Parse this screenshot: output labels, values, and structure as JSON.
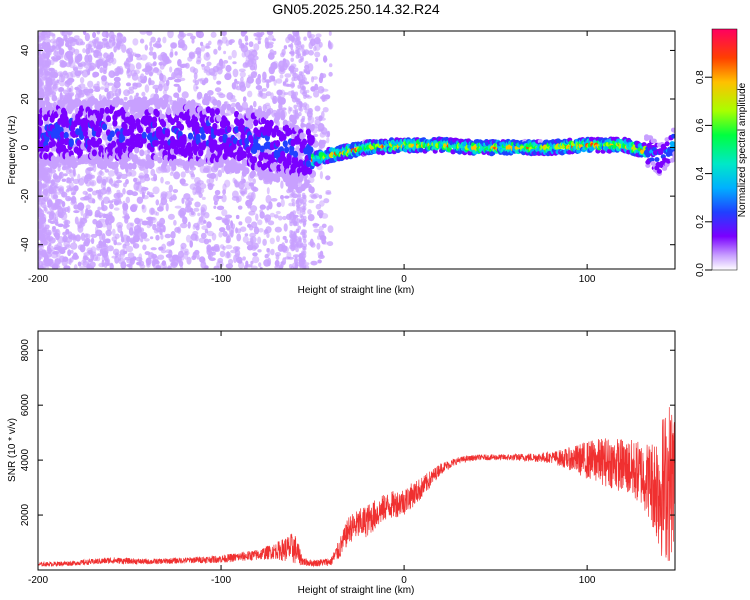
{
  "title": "GN05.2025.250.14.32.R24",
  "chart_data": [
    {
      "type": "heatmap",
      "title": "GN05.2025.250.14.32.R24",
      "xlabel": "Height of straight line (km)",
      "ylabel": "Frequency (Hz)",
      "xlim": [
        -200,
        148
      ],
      "ylim": [
        -50,
        48
      ],
      "xticks": [
        -200,
        -100,
        0,
        100
      ],
      "yticks": [
        -40,
        -20,
        0,
        20,
        40
      ],
      "colorbar": {
        "label": "Normalized spectral amplitude",
        "range": [
          0,
          1
        ],
        "ticks": [
          "0.0",
          "0.2",
          "0.4",
          "0.6",
          "0.8"
        ],
        "tick_values": [
          0,
          0.2,
          0.4,
          0.6,
          0.8
        ],
        "colors": [
          "#ffffff",
          "#c8a0ff",
          "#7a00ff",
          "#2040ff",
          "#00b0ff",
          "#00e8c8",
          "#00ff40",
          "#a8ff00",
          "#ffc000",
          "#ff4000",
          "#ff0060"
        ]
      },
      "ridge": {
        "description_points_x": [
          -200,
          -150,
          -100,
          -80,
          -60,
          -50,
          -40,
          -20,
          0,
          20,
          40,
          60,
          80,
          100,
          120,
          135,
          140,
          148
        ],
        "frequency_y": [
          6,
          6,
          5,
          2,
          -2,
          -5,
          -3,
          0,
          1,
          1,
          0,
          0,
          0,
          1,
          1,
          -2,
          -5,
          2
        ]
      }
    },
    {
      "type": "line",
      "xlabel": "Height of straight line (km)",
      "ylabel": "SNR (10 * v/v)",
      "xlim": [
        -200,
        148
      ],
      "ylim": [
        0,
        8700
      ],
      "xticks": [
        -200,
        -100,
        0,
        100
      ],
      "yticks": [
        2000,
        4000,
        6000,
        8000
      ],
      "series": [
        {
          "name": "SNR",
          "color": "#f03030",
          "x": [
            -200,
            -180,
            -160,
            -140,
            -120,
            -100,
            -80,
            -70,
            -60,
            -55,
            -50,
            -40,
            -35,
            -30,
            -20,
            -10,
            0,
            10,
            20,
            30,
            40,
            60,
            80,
            90,
            100,
            110,
            120,
            130,
            135,
            140,
            145,
            148
          ],
          "y": [
            200,
            250,
            350,
            300,
            350,
            400,
            550,
            700,
            800,
            300,
            250,
            300,
            800,
            1500,
            1800,
            2300,
            2500,
            3000,
            3700,
            4000,
            4100,
            4100,
            4100,
            4050,
            4000,
            3950,
            3800,
            3500,
            3200,
            3000,
            3200,
            3500
          ],
          "noise_amplitude": [
            80,
            90,
            120,
            100,
            110,
            140,
            200,
            300,
            600,
            150,
            120,
            150,
            400,
            500,
            600,
            500,
            500,
            400,
            200,
            120,
            100,
            120,
            200,
            400,
            700,
            900,
            1000,
            1200,
            1500,
            2500,
            3000,
            2500
          ]
        }
      ]
    }
  ]
}
